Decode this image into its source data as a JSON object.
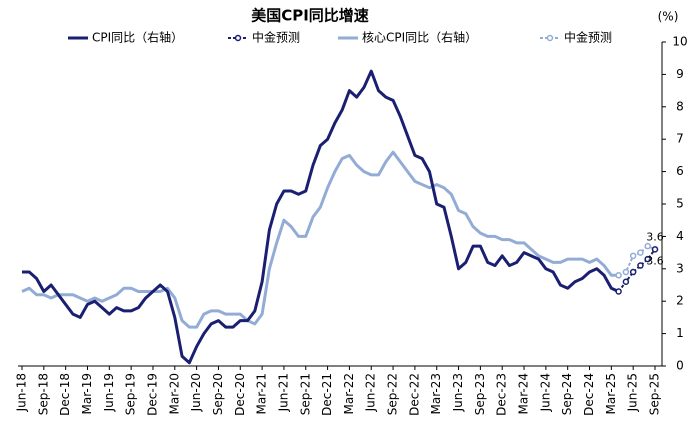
{
  "chart_data": {
    "type": "line",
    "title": "美国CPI同比增速",
    "y_unit": "(%)",
    "categories": [
      "Jun-18",
      null,
      null,
      "Sep-18",
      null,
      null,
      "Dec-18",
      null,
      null,
      "Mar-19",
      null,
      null,
      "Jun-19",
      null,
      null,
      "Sep-19",
      null,
      null,
      "Dec-19",
      null,
      null,
      "Mar-20",
      null,
      null,
      "Jun-20",
      null,
      null,
      "Sep-20",
      null,
      null,
      "Dec-20",
      null,
      null,
      "Mar-21",
      null,
      null,
      "Jun-21",
      null,
      null,
      "Sep-21",
      null,
      null,
      "Dec-21",
      null,
      null,
      "Mar-22",
      null,
      null,
      "Jun-22",
      null,
      null,
      "Sep-22",
      null,
      null,
      "Dec-22",
      null,
      null,
      "Mar-23",
      null,
      null,
      "Jun-23",
      null,
      null,
      "Sep-23",
      null,
      null,
      "Dec-23",
      null,
      null,
      "Mar-24",
      null,
      null,
      "Jun-24",
      null,
      null,
      "Sep-24",
      null,
      null,
      "Dec-24",
      null,
      null,
      "Mar-25",
      null,
      null,
      "Jun-25",
      null,
      null,
      "Sep-25"
    ],
    "series": [
      {
        "name": "CPI同比（右轴）",
        "color": "#1a1f71",
        "dashed": false,
        "marker": false,
        "values": [
          2.9,
          2.9,
          2.7,
          2.3,
          2.5,
          2.2,
          1.9,
          1.6,
          1.5,
          1.9,
          2.0,
          1.8,
          1.6,
          1.8,
          1.7,
          1.7,
          1.8,
          2.1,
          2.3,
          2.5,
          2.3,
          1.5,
          0.3,
          0.1,
          0.6,
          1.0,
          1.3,
          1.4,
          1.2,
          1.2,
          1.4,
          1.4,
          1.7,
          2.6,
          4.2,
          5.0,
          5.4,
          5.4,
          5.3,
          5.4,
          6.2,
          6.8,
          7.0,
          7.5,
          7.9,
          8.5,
          8.3,
          8.6,
          9.1,
          8.5,
          8.3,
          8.2,
          7.7,
          7.1,
          6.5,
          6.4,
          6.0,
          5.0,
          4.9,
          4.0,
          3.0,
          3.2,
          3.7,
          3.7,
          3.2,
          3.1,
          3.4,
          3.1,
          3.2,
          3.5,
          3.4,
          3.3,
          3.0,
          2.9,
          2.5,
          2.4,
          2.6,
          2.7,
          2.9,
          3.0,
          2.8,
          2.4,
          2.3,
          null,
          null,
          null,
          null,
          null
        ]
      },
      {
        "name": "中金预测",
        "color": "#1a1f71",
        "dashed": true,
        "marker": true,
        "values": [
          null,
          null,
          null,
          null,
          null,
          null,
          null,
          null,
          null,
          null,
          null,
          null,
          null,
          null,
          null,
          null,
          null,
          null,
          null,
          null,
          null,
          null,
          null,
          null,
          null,
          null,
          null,
          null,
          null,
          null,
          null,
          null,
          null,
          null,
          null,
          null,
          null,
          null,
          null,
          null,
          null,
          null,
          null,
          null,
          null,
          null,
          null,
          null,
          null,
          null,
          null,
          null,
          null,
          null,
          null,
          null,
          null,
          null,
          null,
          null,
          null,
          null,
          null,
          null,
          null,
          null,
          null,
          null,
          null,
          null,
          null,
          null,
          null,
          null,
          null,
          null,
          null,
          null,
          null,
          null,
          null,
          null,
          2.3,
          2.6,
          2.9,
          3.1,
          3.3,
          3.6
        ]
      },
      {
        "name": "核心CPI同比（右轴）",
        "color": "#93acd6",
        "dashed": false,
        "marker": false,
        "values": [
          2.3,
          2.4,
          2.2,
          2.2,
          2.1,
          2.2,
          2.2,
          2.2,
          2.1,
          2.0,
          2.1,
          2.0,
          2.1,
          2.2,
          2.4,
          2.4,
          2.3,
          2.3,
          2.3,
          2.3,
          2.4,
          2.1,
          1.4,
          1.2,
          1.2,
          1.6,
          1.7,
          1.7,
          1.6,
          1.6,
          1.6,
          1.4,
          1.3,
          1.6,
          3.0,
          3.8,
          4.5,
          4.3,
          4.0,
          4.0,
          4.6,
          4.9,
          5.5,
          6.0,
          6.4,
          6.5,
          6.2,
          6.0,
          5.9,
          5.9,
          6.3,
          6.6,
          6.3,
          6.0,
          5.7,
          5.6,
          5.5,
          5.6,
          5.5,
          5.3,
          4.8,
          4.7,
          4.3,
          4.1,
          4.0,
          4.0,
          3.9,
          3.9,
          3.8,
          3.8,
          3.6,
          3.4,
          3.3,
          3.2,
          3.2,
          3.3,
          3.3,
          3.3,
          3.2,
          3.3,
          3.1,
          2.8,
          2.8,
          null,
          null,
          null,
          null,
          null
        ]
      },
      {
        "name": "中金预测",
        "color": "#93acd6",
        "dashed": true,
        "marker": true,
        "values": [
          null,
          null,
          null,
          null,
          null,
          null,
          null,
          null,
          null,
          null,
          null,
          null,
          null,
          null,
          null,
          null,
          null,
          null,
          null,
          null,
          null,
          null,
          null,
          null,
          null,
          null,
          null,
          null,
          null,
          null,
          null,
          null,
          null,
          null,
          null,
          null,
          null,
          null,
          null,
          null,
          null,
          null,
          null,
          null,
          null,
          null,
          null,
          null,
          null,
          null,
          null,
          null,
          null,
          null,
          null,
          null,
          null,
          null,
          null,
          null,
          null,
          null,
          null,
          null,
          null,
          null,
          null,
          null,
          null,
          null,
          null,
          null,
          null,
          null,
          null,
          null,
          null,
          null,
          null,
          null,
          null,
          null,
          2.8,
          2.9,
          3.4,
          3.5,
          3.7,
          3.6
        ]
      }
    ],
    "ylim": [
      0,
      10
    ],
    "yticks": [
      0,
      1,
      2,
      3,
      4,
      5,
      6,
      7,
      8,
      9,
      10
    ],
    "y_axis_side": "right",
    "grid": false
  }
}
